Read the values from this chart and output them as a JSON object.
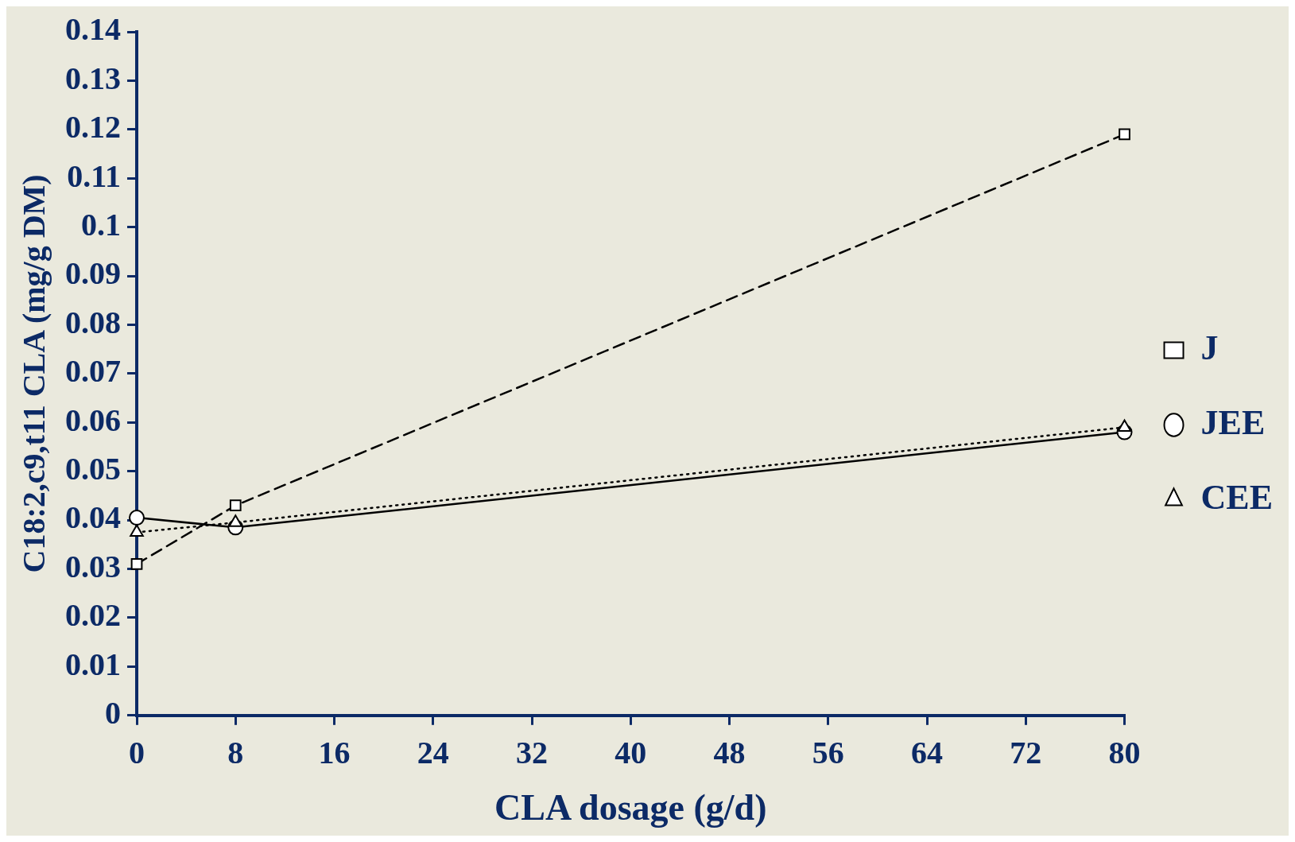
{
  "chart_data": {
    "type": "line",
    "xlabel": "CLA dosage (g/d)",
    "ylabel": "C18:2,c9,t11 CLA (mg/g DM)",
    "x": [
      0,
      8,
      80
    ],
    "series": [
      {
        "name": "J",
        "color": "#000000",
        "values": [
          0.031,
          0.043,
          0.119
        ],
        "marker": "square",
        "line_style": "dashed"
      },
      {
        "name": "JEE",
        "color": "#000000",
        "values": [
          0.0405,
          0.0385,
          0.058
        ],
        "marker": "circle",
        "line_style": "solid"
      },
      {
        "name": "CEE",
        "color": "#000000",
        "values": [
          0.0375,
          0.0395,
          0.059
        ],
        "marker": "triangle",
        "line_style": "dotted"
      }
    ],
    "xlim": [
      0,
      80
    ],
    "xticks": [
      0,
      8,
      16,
      24,
      32,
      40,
      48,
      56,
      64,
      72,
      80
    ],
    "ylim": [
      0,
      0.14
    ],
    "yticks": [
      0,
      0.01,
      0.02,
      0.03,
      0.04,
      0.05,
      0.06,
      0.07,
      0.08,
      0.09,
      0.1,
      0.11,
      0.12,
      0.13,
      0.14
    ],
    "grid": false,
    "legend": "right"
  }
}
